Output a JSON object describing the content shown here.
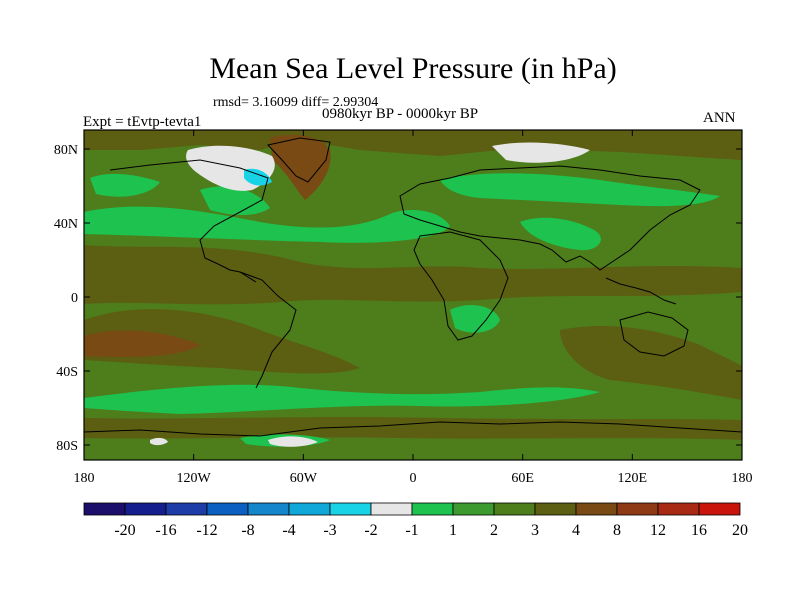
{
  "title": "Mean Sea Level Pressure (in hPa)",
  "stats": "rmsd= 3.16099 diff= 2.99304",
  "period": "0980kyr BP - 0000kyr BP",
  "experiment": "Expt = tEvtp-tevta1",
  "season": "ANN",
  "lat_labels": [
    "80N",
    "40N",
    "0",
    "40S",
    "80S"
  ],
  "lat_values": [
    80,
    40,
    0,
    -40,
    -80
  ],
  "lon_labels": [
    "180",
    "120W",
    "60W",
    "0",
    "60E",
    "120E",
    "180"
  ],
  "lon_values": [
    -180,
    -120,
    -60,
    0,
    60,
    120,
    180
  ],
  "colorbar": {
    "colors": [
      "#1b0f6b",
      "#141e8c",
      "#1e3ca8",
      "#0a5fc0",
      "#1486cc",
      "#10a8d8",
      "#18d2e6",
      "#e6e6e6",
      "#1dc24f",
      "#3c9a2e",
      "#4e7d1c",
      "#5c5e12",
      "#7a4a14",
      "#8e3a14",
      "#a82a14",
      "#c8140a"
    ],
    "labels": [
      "-20",
      "-16",
      "-12",
      "-8",
      "-4",
      "-3",
      "-2",
      "-1",
      "1",
      "2",
      "3",
      "4",
      "8",
      "12",
      "16",
      "20"
    ]
  },
  "palette": {
    "band_1_2": "#1dc24f",
    "band_2_3": "#3c9a2e",
    "band_3_4": "#4e7d1c",
    "band_4_8": "#5c5e12",
    "band_8_12": "#7a4a14",
    "band_-1_1": "#e6e6e6",
    "band_-2_-1": "#18d2e6",
    "band_-3_-2": "#10a8d8"
  }
}
